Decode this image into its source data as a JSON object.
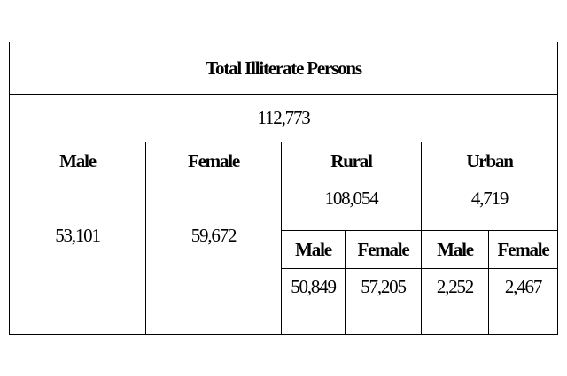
{
  "table": {
    "title": "Total Illiterate Persons",
    "total": "112,773",
    "headers": [
      "Male",
      "Female",
      "Rural",
      "Urban"
    ],
    "male": "53,101",
    "female": "59,672",
    "rural": {
      "total": "108,054",
      "headers": [
        "Male",
        "Female"
      ],
      "values": [
        "50,849",
        "57,205"
      ]
    },
    "urban": {
      "total": "4,719",
      "headers": [
        "Male",
        "Female"
      ],
      "values": [
        "2,252",
        "2,467"
      ]
    }
  }
}
